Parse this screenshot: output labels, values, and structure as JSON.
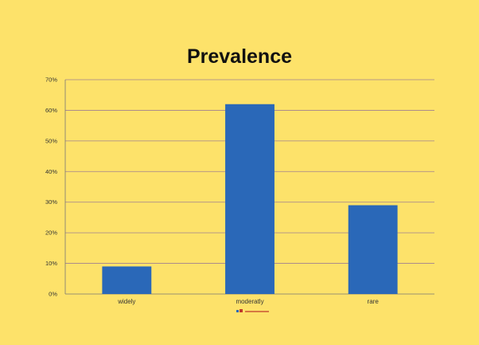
{
  "chart_data": {
    "type": "bar",
    "title": "Prevalence",
    "categories": [
      "widely",
      "moderatly",
      "rare"
    ],
    "values": [
      9,
      62,
      29
    ],
    "ylim": [
      0,
      70
    ],
    "yticks": [
      0,
      10,
      20,
      30,
      40,
      50,
      60,
      70
    ],
    "ytick_labels": [
      "0%",
      "10%",
      "20%",
      "30%",
      "40%",
      "50%",
      "60%",
      "70%"
    ],
    "grid": true,
    "bar_color": "#2a68b8",
    "grid_color": "#a08090",
    "legend": {
      "placement": "bottom",
      "marker_colors": [
        "#2a68b8",
        "#c0392b",
        "#c0392b"
      ]
    }
  }
}
